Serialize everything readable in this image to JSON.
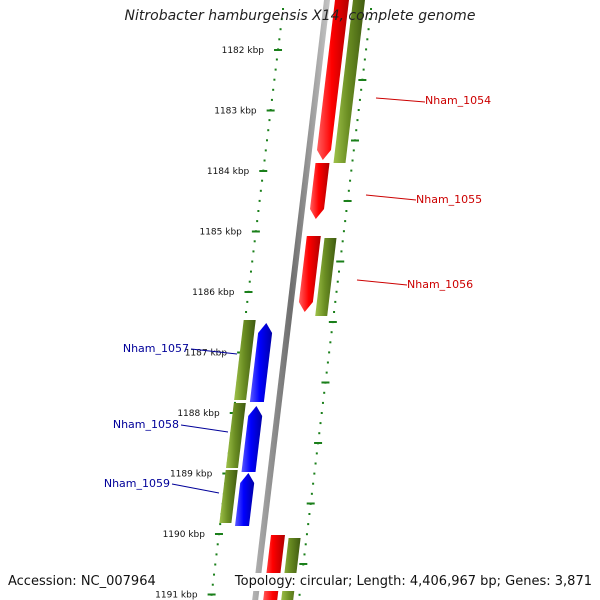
{
  "title": "Nitrobacter hamburgensis X14, complete genome",
  "footer": {
    "accession": "Accession: NC_007964",
    "topology": "Topology: circular; Length: 4,406,967 bp; Genes: 3,871"
  },
  "colors": {
    "forward_cds": "#ff0000",
    "reverse_cds": "#0000ff",
    "gene": "#6b8e23",
    "tick": "#1a7f1a",
    "backbone": "#808080",
    "label_forward": "#cc0000",
    "label_reverse": "#000099"
  },
  "ruler": {
    "labels": [
      "1182 kbp",
      "1183 kbp",
      "1184 kbp",
      "1185 kbp",
      "1186 kbp",
      "1187 kbp",
      "1188 kbp",
      "1189 kbp",
      "1190 kbp",
      "1191 kbp"
    ]
  },
  "genes": [
    {
      "label": "Nham_1054",
      "strand": "forward"
    },
    {
      "label": "Nham_1055",
      "strand": "forward"
    },
    {
      "label": "Nham_1056",
      "strand": "forward"
    },
    {
      "label": "Nham_1057",
      "strand": "reverse"
    },
    {
      "label": "Nham_1058",
      "strand": "reverse"
    },
    {
      "label": "Nham_1059",
      "strand": "reverse"
    }
  ]
}
